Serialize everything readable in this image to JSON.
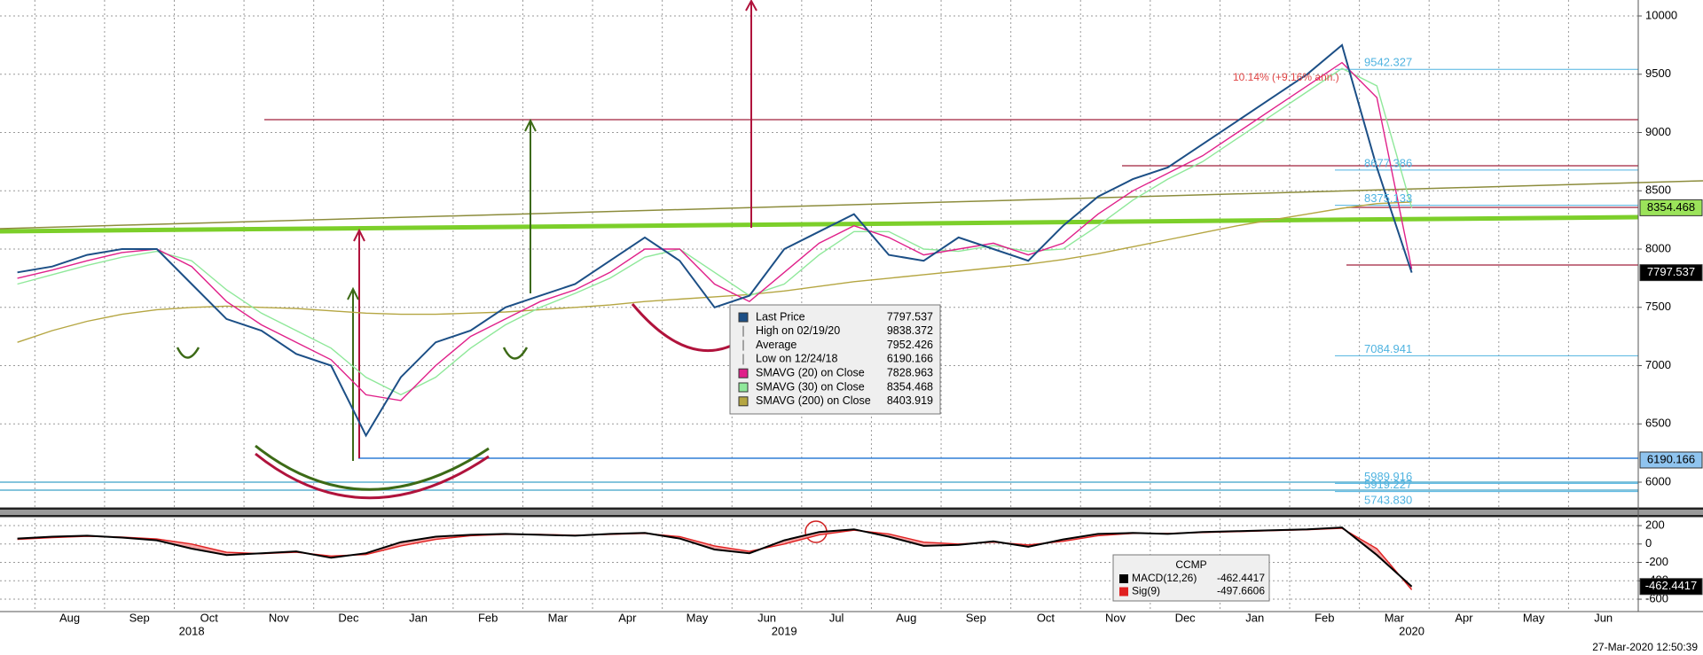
{
  "chart_data": [
    {
      "type": "line",
      "categories": [
        null,
        "Aug",
        null,
        "Sep",
        null,
        "Oct",
        null,
        "Nov",
        null,
        "Dec",
        null,
        "Jan",
        null,
        "Feb",
        null,
        "Mar",
        null,
        "Apr",
        null,
        "May",
        null,
        "Jun",
        null,
        "Jul",
        null,
        "Aug",
        null,
        "Sep",
        null,
        "Oct",
        null,
        "Nov",
        null,
        "Dec",
        null,
        "Jan",
        null,
        "Feb",
        null,
        "Mar",
        null,
        "Apr",
        null,
        "May",
        null,
        "Jun",
        null
      ],
      "year_labels": [
        null,
        null,
        null,
        null,
        null,
        "2018",
        null,
        null,
        null,
        null,
        null,
        null,
        null,
        null,
        null,
        null,
        null,
        null,
        null,
        null,
        null,
        null,
        "2019",
        null,
        null,
        null,
        null,
        null,
        null,
        null,
        null,
        null,
        null,
        null,
        null,
        null,
        null,
        null,
        null,
        null,
        "2020",
        null,
        null,
        null,
        null,
        null,
        null
      ],
      "ylim": [
        5787,
        10137
      ],
      "yticks": [
        6000,
        6500,
        7000,
        7500,
        8000,
        8500,
        9000,
        9500,
        10000
      ],
      "grid": true,
      "series": [
        {
          "name": "Last Price",
          "color": "#1c4f86",
          "values": [
            7800,
            7850,
            7950,
            8000,
            8000,
            7700,
            7400,
            7300,
            7100,
            7000,
            6400,
            6900,
            7200,
            7300,
            7500,
            7600,
            7700,
            7900,
            8100,
            7900,
            7500,
            7600,
            8000,
            8150,
            8300,
            7950,
            7900,
            8100,
            8000,
            7900,
            8200,
            8450,
            8600,
            8700,
            8900,
            9100,
            9300,
            9500,
            9750,
            8700,
            7797.537,
            null,
            null,
            null,
            null,
            null,
            null
          ]
        },
        {
          "name": "SMAVG (20)  on Close",
          "color": "#e0218a",
          "values": [
            7750,
            7820,
            7900,
            7970,
            8000,
            7850,
            7550,
            7350,
            7200,
            7050,
            6750,
            6700,
            7000,
            7250,
            7400,
            7550,
            7650,
            7800,
            8000,
            8000,
            7700,
            7550,
            7800,
            8050,
            8200,
            8100,
            7950,
            8000,
            8050,
            7950,
            8050,
            8300,
            8500,
            8650,
            8800,
            9000,
            9200,
            9400,
            9600,
            9300,
            7828.963,
            null,
            null,
            null,
            null,
            null,
            null
          ]
        },
        {
          "name": "SMAVG (30)  on Close",
          "color": "#8fe89a",
          "values": [
            7700,
            7780,
            7860,
            7930,
            7980,
            7900,
            7650,
            7450,
            7300,
            7150,
            6900,
            6750,
            6900,
            7150,
            7350,
            7500,
            7620,
            7750,
            7930,
            8000,
            7800,
            7600,
            7700,
            7950,
            8150,
            8150,
            8000,
            7980,
            8030,
            7980,
            8000,
            8200,
            8420,
            8600,
            8750,
            8950,
            9150,
            9350,
            9550,
            9400,
            8354.468,
            null,
            null,
            null,
            null,
            null,
            null
          ]
        },
        {
          "name": "SMAVG (200) on Close",
          "color": "#b5a642",
          "values": [
            7200,
            7300,
            7380,
            7440,
            7480,
            7500,
            7510,
            7500,
            7490,
            7470,
            7450,
            7440,
            7440,
            7450,
            7460,
            7480,
            7500,
            7520,
            7550,
            7570,
            7590,
            7610,
            7640,
            7680,
            7720,
            7750,
            7780,
            7810,
            7840,
            7870,
            7910,
            7960,
            8020,
            8080,
            8140,
            8200,
            8250,
            8300,
            8350,
            8390,
            8403.919,
            null,
            null,
            null,
            null,
            null,
            null
          ]
        }
      ],
      "legend_stats": [
        {
          "label": "High on 02/19/20",
          "value": 9838.372
        },
        {
          "label": "Average",
          "value": 7952.426
        },
        {
          "label": "Low on 12/24/18",
          "value": 6190.166
        }
      ],
      "levels": [
        9542.327,
        8677.386,
        8375.133,
        7084.941,
        5989.916,
        5919.227,
        {
          "value": 5743.83,
          "label": "5743.830"
        }
      ],
      "level_color": "#4fb3e0",
      "annotation": "10.14% (+9.16% ann.)",
      "timestamp": "27-Mar-2020 12:50:39"
    },
    {
      "type": "line",
      "title": "CCMP",
      "ylim": [
        -696,
        287
      ],
      "yticks": [
        200,
        0,
        -200,
        -400,
        -600
      ],
      "grid": true,
      "fill_between": "#f4a3a3",
      "series": [
        {
          "name": "MACD(12,26)",
          "color": "#000000",
          "values": [
            60,
            80,
            90,
            70,
            40,
            -50,
            -120,
            -100,
            -80,
            -150,
            -100,
            20,
            80,
            100,
            110,
            100,
            90,
            110,
            120,
            60,
            -60,
            -100,
            40,
            130,
            160,
            80,
            -20,
            -10,
            30,
            -30,
            50,
            110,
            120,
            110,
            130,
            140,
            150,
            160,
            180,
            -120,
            -462.4417,
            null,
            null,
            null,
            null,
            null,
            null
          ]
        },
        {
          "name": "Sig(9)",
          "color": "#e02020",
          "values": [
            50,
            70,
            85,
            75,
            55,
            0,
            -90,
            -105,
            -90,
            -130,
            -115,
            -20,
            50,
            90,
            105,
            105,
            95,
            105,
            115,
            80,
            -20,
            -80,
            0,
            100,
            150,
            110,
            20,
            0,
            20,
            -10,
            30,
            90,
            115,
            115,
            125,
            135,
            145,
            155,
            170,
            -50,
            -497.6606,
            null,
            null,
            null,
            null,
            null,
            null
          ]
        }
      ]
    }
  ]
}
